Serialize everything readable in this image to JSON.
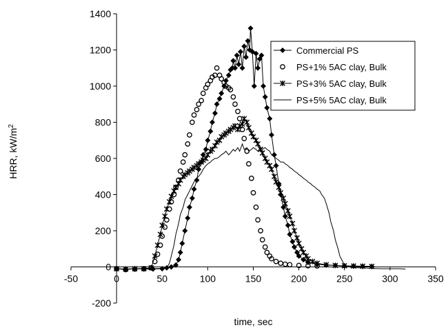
{
  "chart_data": {
    "type": "scatter",
    "title": "",
    "xlabel": "time, sec",
    "ylabel_main": "HRR, kW/m",
    "ylabel_sup": "2",
    "xlim": [
      -50,
      350
    ],
    "ylim": [
      -200,
      1400
    ],
    "xticks": [
      -50,
      0,
      50,
      100,
      150,
      200,
      250,
      300,
      350
    ],
    "yticks": [
      -200,
      0,
      200,
      400,
      600,
      800,
      1000,
      1200,
      1400
    ],
    "grid": false,
    "legend_position": "top-right",
    "series": [
      {
        "name": "Commercial PS",
        "marker": "diamond",
        "line": true,
        "color": "#000000",
        "points": [
          [
            0,
            -10
          ],
          [
            10,
            -15
          ],
          [
            20,
            -10
          ],
          [
            30,
            -12
          ],
          [
            40,
            -12
          ],
          [
            50,
            -10
          ],
          [
            55,
            -5
          ],
          [
            60,
            0
          ],
          [
            65,
            10
          ],
          [
            68,
            40
          ],
          [
            70,
            80
          ],
          [
            72,
            130
          ],
          [
            75,
            200
          ],
          [
            78,
            270
          ],
          [
            80,
            330
          ],
          [
            83,
            380
          ],
          [
            85,
            430
          ],
          [
            88,
            480
          ],
          [
            90,
            540
          ],
          [
            93,
            580
          ],
          [
            95,
            620
          ],
          [
            98,
            650
          ],
          [
            100,
            700
          ],
          [
            103,
            750
          ],
          [
            105,
            800
          ],
          [
            108,
            850
          ],
          [
            110,
            900
          ],
          [
            113,
            930
          ],
          [
            115,
            960
          ],
          [
            118,
            1000
          ],
          [
            120,
            1030
          ],
          [
            123,
            1060
          ],
          [
            125,
            1090
          ],
          [
            127,
            1100
          ],
          [
            128,
            1140
          ],
          [
            130,
            1100
          ],
          [
            132,
            1170
          ],
          [
            134,
            1120
          ],
          [
            136,
            1190
          ],
          [
            138,
            1100
          ],
          [
            140,
            1220
          ],
          [
            142,
            1160
          ],
          [
            144,
            1250
          ],
          [
            146,
            1200
          ],
          [
            147,
            1320
          ],
          [
            149,
            1190
          ],
          [
            151,
            1000
          ],
          [
            153,
            1180
          ],
          [
            155,
            1100
          ],
          [
            157,
            1150
          ],
          [
            159,
            1170
          ],
          [
            161,
            1000
          ],
          [
            163,
            940
          ],
          [
            165,
            880
          ],
          [
            168,
            820
          ],
          [
            170,
            730
          ],
          [
            173,
            620
          ],
          [
            175,
            560
          ],
          [
            178,
            460
          ],
          [
            180,
            400
          ],
          [
            183,
            330
          ],
          [
            185,
            280
          ],
          [
            188,
            230
          ],
          [
            190,
            180
          ],
          [
            193,
            140
          ],
          [
            195,
            110
          ],
          [
            198,
            80
          ],
          [
            200,
            60
          ],
          [
            205,
            40
          ],
          [
            210,
            25
          ],
          [
            220,
            15
          ],
          [
            230,
            10
          ],
          [
            240,
            8
          ],
          [
            250,
            5
          ],
          [
            260,
            5
          ],
          [
            270,
            3
          ],
          [
            280,
            2
          ]
        ]
      },
      {
        "name": "PS+1% 5AC clay, Bulk",
        "marker": "circle",
        "line": false,
        "color": "#000000",
        "points": [
          [
            0,
            -10
          ],
          [
            10,
            -15
          ],
          [
            20,
            -12
          ],
          [
            30,
            -10
          ],
          [
            38,
            -5
          ],
          [
            42,
            30
          ],
          [
            45,
            70
          ],
          [
            48,
            120
          ],
          [
            50,
            170
          ],
          [
            53,
            220
          ],
          [
            55,
            260
          ],
          [
            58,
            320
          ],
          [
            60,
            360
          ],
          [
            63,
            400
          ],
          [
            65,
            440
          ],
          [
            68,
            480
          ],
          [
            70,
            530
          ],
          [
            73,
            580
          ],
          [
            75,
            620
          ],
          [
            78,
            680
          ],
          [
            80,
            730
          ],
          [
            83,
            800
          ],
          [
            85,
            840
          ],
          [
            88,
            870
          ],
          [
            90,
            900
          ],
          [
            93,
            920
          ],
          [
            95,
            960
          ],
          [
            98,
            990
          ],
          [
            100,
            1010
          ],
          [
            103,
            1030
          ],
          [
            105,
            1050
          ],
          [
            108,
            1060
          ],
          [
            110,
            1100
          ],
          [
            113,
            1060
          ],
          [
            115,
            1040
          ],
          [
            118,
            1020
          ],
          [
            120,
            1000
          ],
          [
            123,
            990
          ],
          [
            125,
            980
          ],
          [
            128,
            940
          ],
          [
            130,
            900
          ],
          [
            133,
            860
          ],
          [
            135,
            820
          ],
          [
            138,
            760
          ],
          [
            140,
            710
          ],
          [
            143,
            640
          ],
          [
            145,
            570
          ],
          [
            148,
            490
          ],
          [
            150,
            410
          ],
          [
            153,
            330
          ],
          [
            155,
            260
          ],
          [
            158,
            200
          ],
          [
            160,
            150
          ],
          [
            163,
            110
          ],
          [
            165,
            80
          ],
          [
            168,
            60
          ],
          [
            170,
            45
          ],
          [
            175,
            30
          ],
          [
            180,
            20
          ],
          [
            185,
            15
          ],
          [
            190,
            12
          ],
          [
            200,
            8
          ],
          [
            210,
            6
          ],
          [
            220,
            5
          ]
        ]
      },
      {
        "name": "PS+3% 5AC clay, Bulk",
        "marker": "star",
        "line": true,
        "color": "#000000",
        "points": [
          [
            0,
            -10
          ],
          [
            10,
            -12
          ],
          [
            20,
            -10
          ],
          [
            30,
            -10
          ],
          [
            38,
            -5
          ],
          [
            42,
            60
          ],
          [
            45,
            120
          ],
          [
            48,
            180
          ],
          [
            50,
            230
          ],
          [
            53,
            280
          ],
          [
            55,
            320
          ],
          [
            58,
            360
          ],
          [
            60,
            390
          ],
          [
            63,
            420
          ],
          [
            65,
            440
          ],
          [
            68,
            460
          ],
          [
            70,
            480
          ],
          [
            73,
            500
          ],
          [
            75,
            510
          ],
          [
            78,
            520
          ],
          [
            80,
            530
          ],
          [
            83,
            540
          ],
          [
            85,
            550
          ],
          [
            88,
            560
          ],
          [
            90,
            570
          ],
          [
            93,
            580
          ],
          [
            95,
            590
          ],
          [
            98,
            600
          ],
          [
            100,
            620
          ],
          [
            103,
            640
          ],
          [
            105,
            650
          ],
          [
            108,
            670
          ],
          [
            110,
            690
          ],
          [
            113,
            700
          ],
          [
            115,
            720
          ],
          [
            118,
            730
          ],
          [
            120,
            740
          ],
          [
            123,
            750
          ],
          [
            125,
            760
          ],
          [
            128,
            770
          ],
          [
            130,
            780
          ],
          [
            133,
            760
          ],
          [
            135,
            780
          ],
          [
            138,
            790
          ],
          [
            140,
            820
          ],
          [
            143,
            800
          ],
          [
            145,
            770
          ],
          [
            148,
            740
          ],
          [
            150,
            720
          ],
          [
            153,
            700
          ],
          [
            155,
            680
          ],
          [
            158,
            650
          ],
          [
            160,
            630
          ],
          [
            163,
            600
          ],
          [
            165,
            580
          ],
          [
            168,
            560
          ],
          [
            170,
            540
          ],
          [
            173,
            500
          ],
          [
            175,
            470
          ],
          [
            178,
            440
          ],
          [
            180,
            410
          ],
          [
            183,
            380
          ],
          [
            185,
            350
          ],
          [
            188,
            310
          ],
          [
            190,
            280
          ],
          [
            193,
            240
          ],
          [
            195,
            200
          ],
          [
            198,
            160
          ],
          [
            200,
            130
          ],
          [
            203,
            100
          ],
          [
            205,
            80
          ],
          [
            208,
            60
          ],
          [
            210,
            45
          ],
          [
            215,
            30
          ],
          [
            220,
            20
          ],
          [
            230,
            12
          ],
          [
            240,
            8
          ],
          [
            250,
            6
          ],
          [
            260,
            5
          ],
          [
            270,
            4
          ],
          [
            280,
            3
          ]
        ]
      },
      {
        "name": "PS+5% 5AC clay, Bulk",
        "marker": "none",
        "line": true,
        "color": "#000000",
        "points": [
          [
            0,
            -10
          ],
          [
            10,
            -12
          ],
          [
            20,
            -10
          ],
          [
            30,
            -10
          ],
          [
            40,
            -10
          ],
          [
            50,
            -8
          ],
          [
            55,
            -5
          ],
          [
            58,
            20
          ],
          [
            60,
            60
          ],
          [
            63,
            120
          ],
          [
            65,
            180
          ],
          [
            68,
            240
          ],
          [
            70,
            290
          ],
          [
            73,
            330
          ],
          [
            75,
            370
          ],
          [
            78,
            400
          ],
          [
            80,
            420
          ],
          [
            83,
            450
          ],
          [
            85,
            470
          ],
          [
            88,
            490
          ],
          [
            90,
            500
          ],
          [
            93,
            520
          ],
          [
            95,
            540
          ],
          [
            98,
            560
          ],
          [
            100,
            570
          ],
          [
            103,
            580
          ],
          [
            105,
            590
          ],
          [
            108,
            600
          ],
          [
            110,
            600
          ],
          [
            113,
            610
          ],
          [
            115,
            620
          ],
          [
            118,
            630
          ],
          [
            120,
            640
          ],
          [
            123,
            620
          ],
          [
            125,
            630
          ],
          [
            128,
            650
          ],
          [
            130,
            640
          ],
          [
            133,
            660
          ],
          [
            135,
            640
          ],
          [
            138,
            680
          ],
          [
            140,
            650
          ],
          [
            143,
            660
          ],
          [
            145,
            640
          ],
          [
            148,
            650
          ],
          [
            150,
            660
          ],
          [
            153,
            650
          ],
          [
            155,
            640
          ],
          [
            158,
            660
          ],
          [
            160,
            650
          ],
          [
            163,
            660
          ],
          [
            165,
            650
          ],
          [
            168,
            640
          ],
          [
            170,
            620
          ],
          [
            173,
            610
          ],
          [
            175,
            600
          ],
          [
            178,
            590
          ],
          [
            180,
            580
          ],
          [
            183,
            580
          ],
          [
            185,
            570
          ],
          [
            188,
            560
          ],
          [
            190,
            550
          ],
          [
            193,
            540
          ],
          [
            195,
            530
          ],
          [
            198,
            520
          ],
          [
            200,
            510
          ],
          [
            203,
            500
          ],
          [
            205,
            490
          ],
          [
            208,
            480
          ],
          [
            210,
            470
          ],
          [
            213,
            460
          ],
          [
            215,
            450
          ],
          [
            218,
            440
          ],
          [
            220,
            430
          ],
          [
            223,
            420
          ],
          [
            225,
            400
          ],
          [
            228,
            380
          ],
          [
            230,
            350
          ],
          [
            233,
            300
          ],
          [
            235,
            250
          ],
          [
            238,
            200
          ],
          [
            240,
            150
          ],
          [
            243,
            100
          ],
          [
            245,
            60
          ],
          [
            248,
            30
          ],
          [
            250,
            10
          ],
          [
            255,
            0
          ],
          [
            260,
            -5
          ],
          [
            270,
            -5
          ],
          [
            280,
            -8
          ],
          [
            290,
            -10
          ],
          [
            300,
            -10
          ],
          [
            310,
            -10
          ],
          [
            317,
            -12
          ]
        ]
      }
    ]
  }
}
